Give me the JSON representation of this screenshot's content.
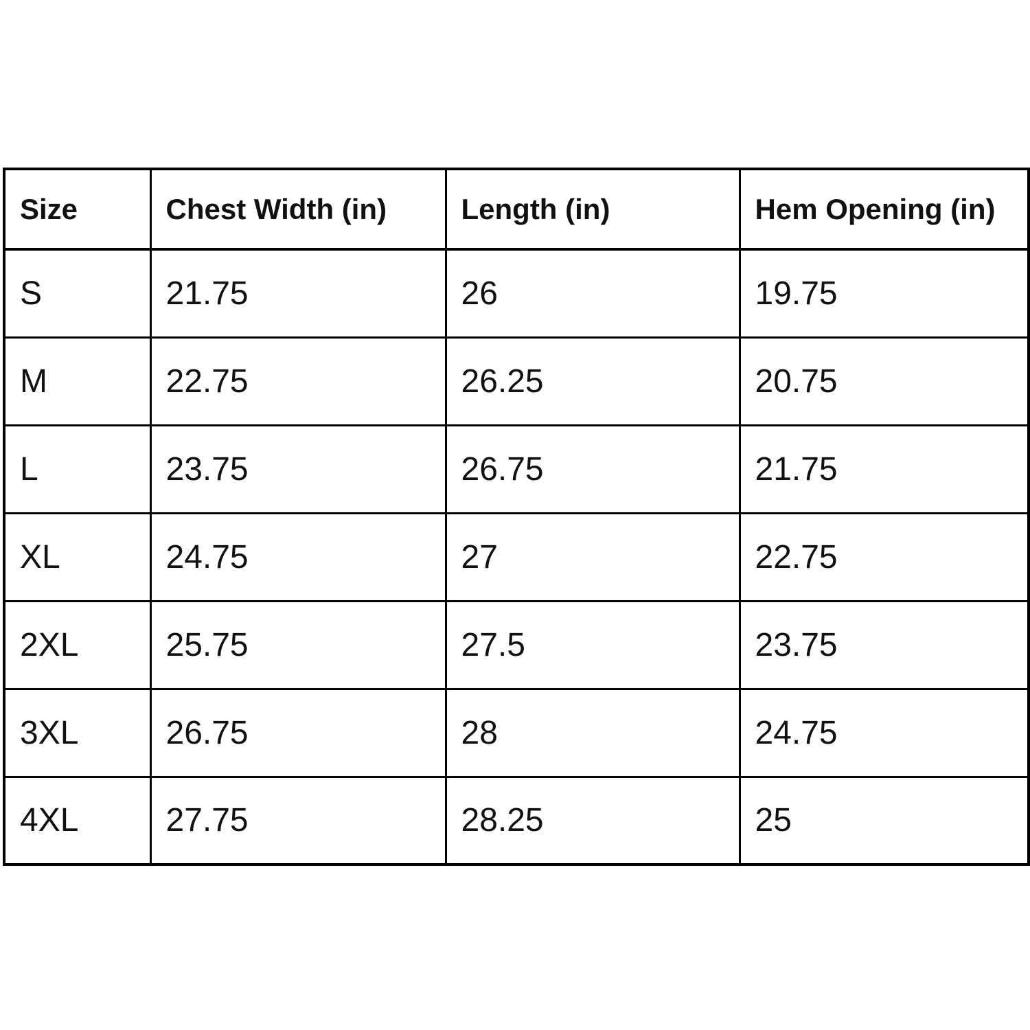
{
  "colors": {
    "background": "#ffffff",
    "grid_border": "#000000",
    "text": "#111111"
  },
  "chart_data": {
    "type": "table",
    "columns": [
      "Size",
      "Chest Width (in)",
      "Length (in)",
      "Hem Opening (in)"
    ],
    "rows": [
      [
        "S",
        "21.75",
        "26",
        "19.75"
      ],
      [
        "M",
        "22.75",
        "26.25",
        "20.75"
      ],
      [
        "L",
        "23.75",
        "26.75",
        "21.75"
      ],
      [
        "XL",
        "24.75",
        "27",
        "22.75"
      ],
      [
        "2XL",
        "25.75",
        "27.5",
        "23.75"
      ],
      [
        "3XL",
        "26.75",
        "28",
        "24.75"
      ],
      [
        "4XL",
        "27.75",
        "28.25",
        "25"
      ]
    ]
  }
}
